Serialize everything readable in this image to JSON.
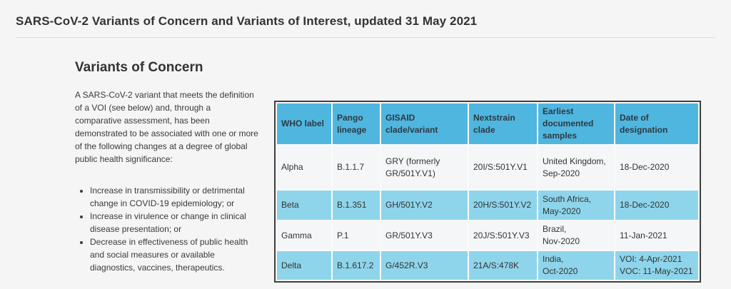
{
  "page": {
    "title": "SARS-CoV-2 Variants of Concern and Variants of Interest, updated 31 May 2021"
  },
  "section": {
    "heading": "Variants of Concern",
    "intro": "A SARS-CoV-2 variant that meets the definition of a VOI (see below) and, through a comparative assessment, has been demonstrated to be associated with one or more of the following changes at a degree of global public health significance:",
    "bullets": [
      "Increase in transmissibility or detrimental change in COVID-19 epidemiology; or",
      "Increase in virulence or change in clinical disease presentation; or",
      "Decrease in effectiveness of public health and social measures or available diagnostics, vaccines, therapeutics."
    ]
  },
  "table": {
    "headers": [
      "WHO label",
      "Pango lineage",
      "GISAID clade/variant",
      "Nextstrain clade",
      "Earliest documented samples",
      "Date of designation"
    ],
    "rows": [
      {
        "who": "Alpha",
        "pango": "B.1.1.7",
        "gisaid": "GRY (formerly\nGR/501Y.V1)",
        "nextstrain": "20I/S:501Y.V1",
        "earliest": "United Kingdom,\nSep-2020",
        "designation": "18-Dec-2020"
      },
      {
        "who": "Beta",
        "pango": "B.1.351",
        "gisaid": "GH/501Y.V2",
        "nextstrain": "20H/S:501Y.V2",
        "earliest": "South Africa,\nMay-2020",
        "designation": "18-Dec-2020"
      },
      {
        "who": "Gamma",
        "pango": "P.1",
        "gisaid": "GR/501Y.V3",
        "nextstrain": "20J/S:501Y.V3",
        "earliest": "Brazil,\nNov-2020",
        "designation": "11-Jan-2021"
      },
      {
        "who": "Delta",
        "pango": "B.1.617.2",
        "gisaid": "G/452R.V3",
        "nextstrain": "21A/S:478K",
        "earliest": "India,\nOct-2020",
        "designation": "VOI: 4-Apr-2021\nVOC: 11-May-2021"
      }
    ]
  },
  "colors": {
    "page_bg": "#f5f5f6",
    "text": "#333333",
    "rule": "#dcdcdc",
    "table_border": "#3f3f3f",
    "table_gap": "#fafafa",
    "header_cell_bg": "#4fb6e0",
    "header_text": "#2f3940",
    "row_bg": "#f5f6f7",
    "row_alt_bg": "#8ed5ec"
  }
}
